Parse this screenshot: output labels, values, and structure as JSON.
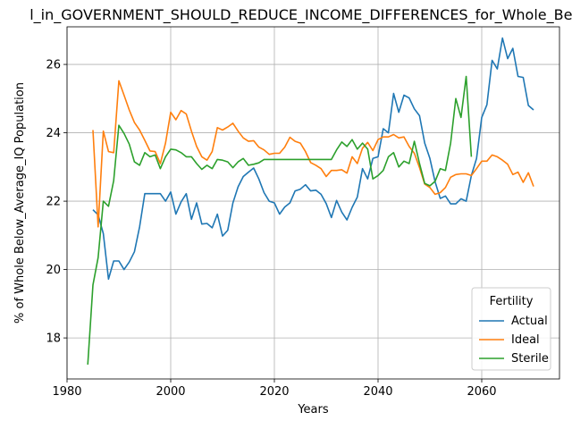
{
  "chart_data": {
    "type": "line",
    "title": "l_in_GOVERNMENT_SHOULD_REDUCE_INCOME_DIFFERENCES_for_Whole_Below",
    "xlabel": "Years",
    "ylabel": "% of Whole Below_Average_IQ Population",
    "xlim": [
      1980,
      2075
    ],
    "ylim": [
      16.8,
      27.1
    ],
    "xticks": [
      1980,
      2000,
      2020,
      2040,
      2060
    ],
    "yticks": [
      18,
      20,
      22,
      24,
      26
    ],
    "grid": true,
    "legend": {
      "title": "Fertility",
      "placement": "lower-right"
    },
    "series": [
      {
        "name": "Actual",
        "color": "#1f77b4",
        "x": [
          1985,
          1986,
          1987,
          1988,
          1989,
          1990,
          1991,
          1992,
          1993,
          1994,
          1995,
          1996,
          1997,
          1998,
          1999,
          2000,
          2001,
          2002,
          2003,
          2004,
          2005,
          2006,
          2007,
          2008,
          2009,
          2010,
          2011,
          2012,
          2013,
          2014,
          2015,
          2016,
          2017,
          2018,
          2019,
          2020,
          2021,
          2022,
          2023,
          2024,
          2025,
          2026,
          2027,
          2028,
          2029,
          2030,
          2031,
          2032,
          2033,
          2034,
          2035,
          2036,
          2037,
          2038,
          2039,
          2040,
          2041,
          2042,
          2043,
          2044,
          2045,
          2046,
          2047,
          2048,
          2049,
          2050,
          2051,
          2052,
          2053,
          2054,
          2055,
          2056,
          2057,
          2058,
          2059,
          2060,
          2061,
          2062,
          2063,
          2064,
          2065,
          2066,
          2067,
          2068,
          2069,
          2070
        ],
        "y": [
          21.75,
          21.6,
          21.05,
          19.72,
          20.25,
          20.25,
          20.0,
          20.22,
          20.52,
          21.25,
          22.22,
          22.22,
          22.22,
          22.22,
          22.0,
          22.27,
          21.62,
          21.98,
          22.22,
          21.47,
          21.95,
          21.33,
          21.35,
          21.22,
          21.62,
          20.98,
          21.15,
          21.95,
          22.42,
          22.72,
          22.85,
          22.97,
          22.65,
          22.25,
          22.0,
          21.95,
          21.62,
          21.83,
          21.95,
          22.3,
          22.35,
          22.48,
          22.3,
          22.32,
          22.2,
          21.93,
          21.52,
          22.02,
          21.68,
          21.45,
          21.82,
          22.12,
          22.95,
          22.65,
          23.25,
          23.3,
          24.12,
          24.0,
          25.15,
          24.6,
          25.1,
          25.02,
          24.7,
          24.5,
          23.7,
          23.25,
          22.57,
          22.08,
          22.15,
          21.92,
          21.92,
          22.07,
          22.0,
          22.75,
          23.25,
          24.45,
          24.82,
          26.12,
          25.87,
          26.77,
          26.17,
          26.47,
          25.65,
          25.62,
          24.8,
          24.67
        ]
      },
      {
        "name": "Ideal",
        "color": "#ff7f0e",
        "x": [
          1985,
          1986,
          1987,
          1988,
          1989,
          1990,
          1991,
          1992,
          1993,
          1994,
          1995,
          1996,
          1997,
          1998,
          1999,
          2000,
          2001,
          2002,
          2003,
          2004,
          2005,
          2006,
          2007,
          2008,
          2009,
          2010,
          2011,
          2012,
          2013,
          2014,
          2015,
          2016,
          2017,
          2018,
          2019,
          2020,
          2021,
          2022,
          2023,
          2024,
          2025,
          2026,
          2027,
          2028,
          2029,
          2030,
          2031,
          2032,
          2033,
          2034,
          2035,
          2036,
          2037,
          2038,
          2039,
          2040,
          2041,
          2042,
          2043,
          2044,
          2045,
          2046,
          2047,
          2048,
          2049,
          2050,
          2051,
          2052,
          2053,
          2054,
          2055,
          2056,
          2057,
          2058,
          2059,
          2060,
          2061,
          2062,
          2063,
          2064,
          2065,
          2066,
          2067,
          2068,
          2069,
          2070
        ],
        "y": [
          24.08,
          21.25,
          24.05,
          23.45,
          23.42,
          25.52,
          25.1,
          24.67,
          24.3,
          24.08,
          23.78,
          23.47,
          23.45,
          23.1,
          23.7,
          24.6,
          24.38,
          24.65,
          24.55,
          24.05,
          23.6,
          23.3,
          23.2,
          23.45,
          24.15,
          24.08,
          24.17,
          24.28,
          24.05,
          23.85,
          23.75,
          23.77,
          23.58,
          23.5,
          23.37,
          23.4,
          23.4,
          23.58,
          23.87,
          23.75,
          23.7,
          23.45,
          23.13,
          23.05,
          22.95,
          22.72,
          22.9,
          22.9,
          22.92,
          22.82,
          23.3,
          23.1,
          23.55,
          23.72,
          23.48,
          23.8,
          23.88,
          23.88,
          23.95,
          23.85,
          23.88,
          23.6,
          23.4,
          22.98,
          22.5,
          22.4,
          22.2,
          22.25,
          22.4,
          22.7,
          22.78,
          22.8,
          22.8,
          22.75,
          22.95,
          23.17,
          23.17,
          23.35,
          23.3,
          23.2,
          23.08,
          22.78,
          22.85,
          22.55,
          22.83,
          22.43
        ]
      },
      {
        "name": "Sterile",
        "color": "#2ca02c",
        "x": [
          1984,
          1985,
          1986,
          1987,
          1988,
          1989,
          1990,
          1991,
          1992,
          1993,
          1994,
          1995,
          1996,
          1997,
          1998,
          1999,
          2000,
          2001,
          2002,
          2003,
          2004,
          2005,
          2006,
          2007,
          2008,
          2009,
          2010,
          2011,
          2012,
          2013,
          2014,
          2015,
          2016,
          2017,
          2018,
          2019,
          2020,
          2021,
          2022,
          2023,
          2024,
          2025,
          2026,
          2027,
          2028,
          2029,
          2030,
          2031,
          2032,
          2033,
          2034,
          2035,
          2036,
          2037,
          2038,
          2039,
          2040,
          2041,
          2042,
          2043,
          2044,
          2045,
          2046,
          2047,
          2048,
          2049,
          2050,
          2051,
          2052,
          2053,
          2054,
          2055,
          2056,
          2057,
          2058
        ],
        "y": [
          17.22,
          19.55,
          20.35,
          22.0,
          21.85,
          22.6,
          24.22,
          23.98,
          23.67,
          23.15,
          23.05,
          23.42,
          23.3,
          23.35,
          22.95,
          23.3,
          23.52,
          23.5,
          23.42,
          23.3,
          23.3,
          23.1,
          22.93,
          23.05,
          22.95,
          23.22,
          23.2,
          23.15,
          22.98,
          23.15,
          23.25,
          23.05,
          23.08,
          23.12,
          23.22,
          23.22,
          23.22,
          23.22,
          23.22,
          23.22,
          23.22,
          23.22,
          23.22,
          23.22,
          23.22,
          23.22,
          23.22,
          23.22,
          23.5,
          23.73,
          23.6,
          23.8,
          23.52,
          23.7,
          23.52,
          22.65,
          22.75,
          22.9,
          23.3,
          23.42,
          23.0,
          23.17,
          23.1,
          23.75,
          23.1,
          22.52,
          22.45,
          22.58,
          22.95,
          22.9,
          23.7,
          25.0,
          24.45,
          25.65,
          23.3
        ]
      }
    ]
  }
}
